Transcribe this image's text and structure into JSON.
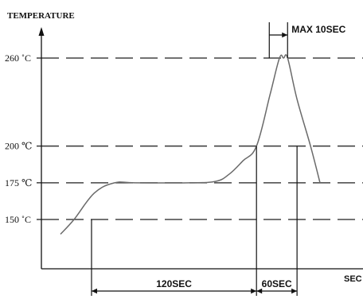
{
  "chart_data": {
    "type": "line",
    "title": "",
    "ylabel": "TEMPERATURE",
    "xlabel": "SEC",
    "ylim": [
      125,
      290
    ],
    "grid": "dashed reference lines at labeled temperatures",
    "y_ticks": [
      {
        "value": 260,
        "label": "260 ˚C"
      },
      {
        "value": 200,
        "label": "200 ℃"
      },
      {
        "value": 175,
        "label": "175 ℃"
      },
      {
        "value": 150,
        "label": "150 ˚C"
      }
    ],
    "series": [
      {
        "x": [
          0,
          10,
          25,
          40,
          55,
          95,
          115,
          125,
          135,
          145,
          155,
          162,
          165,
          168,
          175,
          185,
          192
        ],
        "y": [
          140,
          150,
          168,
          175,
          175,
          175,
          176,
          181,
          190,
          200,
          235,
          260,
          260,
          260,
          232,
          200,
          175
        ]
      }
    ],
    "annotations": [
      {
        "text": "120SEC",
        "from_x": 10,
        "to_x": 145
      },
      {
        "text": "60SEC",
        "from_x": 145,
        "to_x": 175
      },
      {
        "text": "MAX 10SEC",
        "from_x": 158,
        "to_x": 168
      }
    ]
  },
  "colors": {
    "ink": "#111111",
    "dash": "#444444",
    "curve": "#6a6a6a"
  }
}
